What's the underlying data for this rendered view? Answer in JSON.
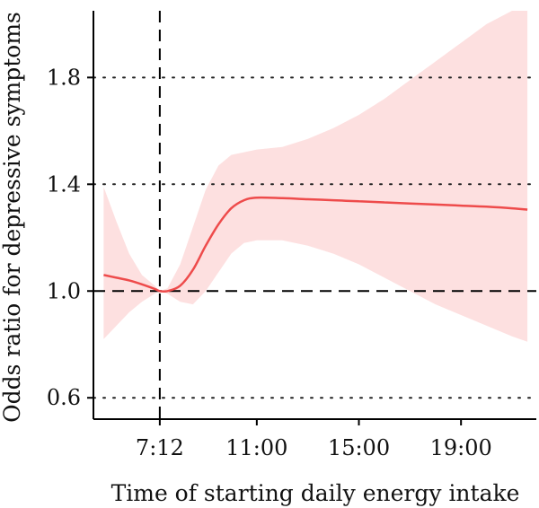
{
  "chart_data": {
    "type": "line",
    "title": "",
    "xlabel": "Time of starting daily energy intake",
    "ylabel": "Odds ratio for depressive symptoms",
    "xlim": [
      4.6,
      21.95
    ],
    "ylim": [
      0.52,
      2.05
    ],
    "x_ticks": [
      {
        "value": 7.2,
        "label": "7:12"
      },
      {
        "value": 11,
        "label": "11:00"
      },
      {
        "value": 15,
        "label": "15:00"
      },
      {
        "value": 19,
        "label": "19:00"
      }
    ],
    "y_ticks": [
      {
        "value": 0.6,
        "label": "0.6"
      },
      {
        "value": 1.0,
        "label": "1.0"
      },
      {
        "value": 1.4,
        "label": "1.4"
      },
      {
        "value": 1.8,
        "label": "1.8"
      }
    ],
    "horizontal_gridlines": [
      0.6,
      1.4,
      1.8
    ],
    "reference_lines": {
      "x": 7.2,
      "y": 1.0
    },
    "colors": {
      "line": "#ee4b4b",
      "band": "#fde0e0",
      "axis": "#000000"
    },
    "series": [
      {
        "x": [
          5.0,
          5.5,
          6.0,
          6.5,
          7.0,
          7.2,
          7.5,
          8.0,
          8.5,
          9.0,
          9.5,
          10.0,
          10.5,
          11.0,
          12.0,
          13.0,
          14.0,
          15.0,
          16.0,
          17.0,
          18.0,
          19.0,
          20.0,
          21.0,
          21.6
        ],
        "y": [
          1.06,
          1.05,
          1.04,
          1.025,
          1.008,
          1.0,
          1.0,
          1.02,
          1.08,
          1.17,
          1.25,
          1.31,
          1.34,
          1.35,
          1.348,
          1.344,
          1.34,
          1.336,
          1.332,
          1.328,
          1.324,
          1.32,
          1.316,
          1.31,
          1.305
        ],
        "ci_lower": [
          0.82,
          0.87,
          0.92,
          0.96,
          0.99,
          1.0,
          0.99,
          0.96,
          0.95,
          1.0,
          1.07,
          1.14,
          1.18,
          1.19,
          1.19,
          1.17,
          1.14,
          1.1,
          1.05,
          1.0,
          0.95,
          0.91,
          0.87,
          0.83,
          0.81
        ],
        "ci_upper": [
          1.39,
          1.26,
          1.14,
          1.06,
          1.02,
          1.0,
          1.01,
          1.1,
          1.24,
          1.38,
          1.47,
          1.51,
          1.52,
          1.53,
          1.54,
          1.57,
          1.61,
          1.66,
          1.72,
          1.79,
          1.86,
          1.93,
          2.0,
          2.06,
          2.09
        ]
      }
    ]
  }
}
